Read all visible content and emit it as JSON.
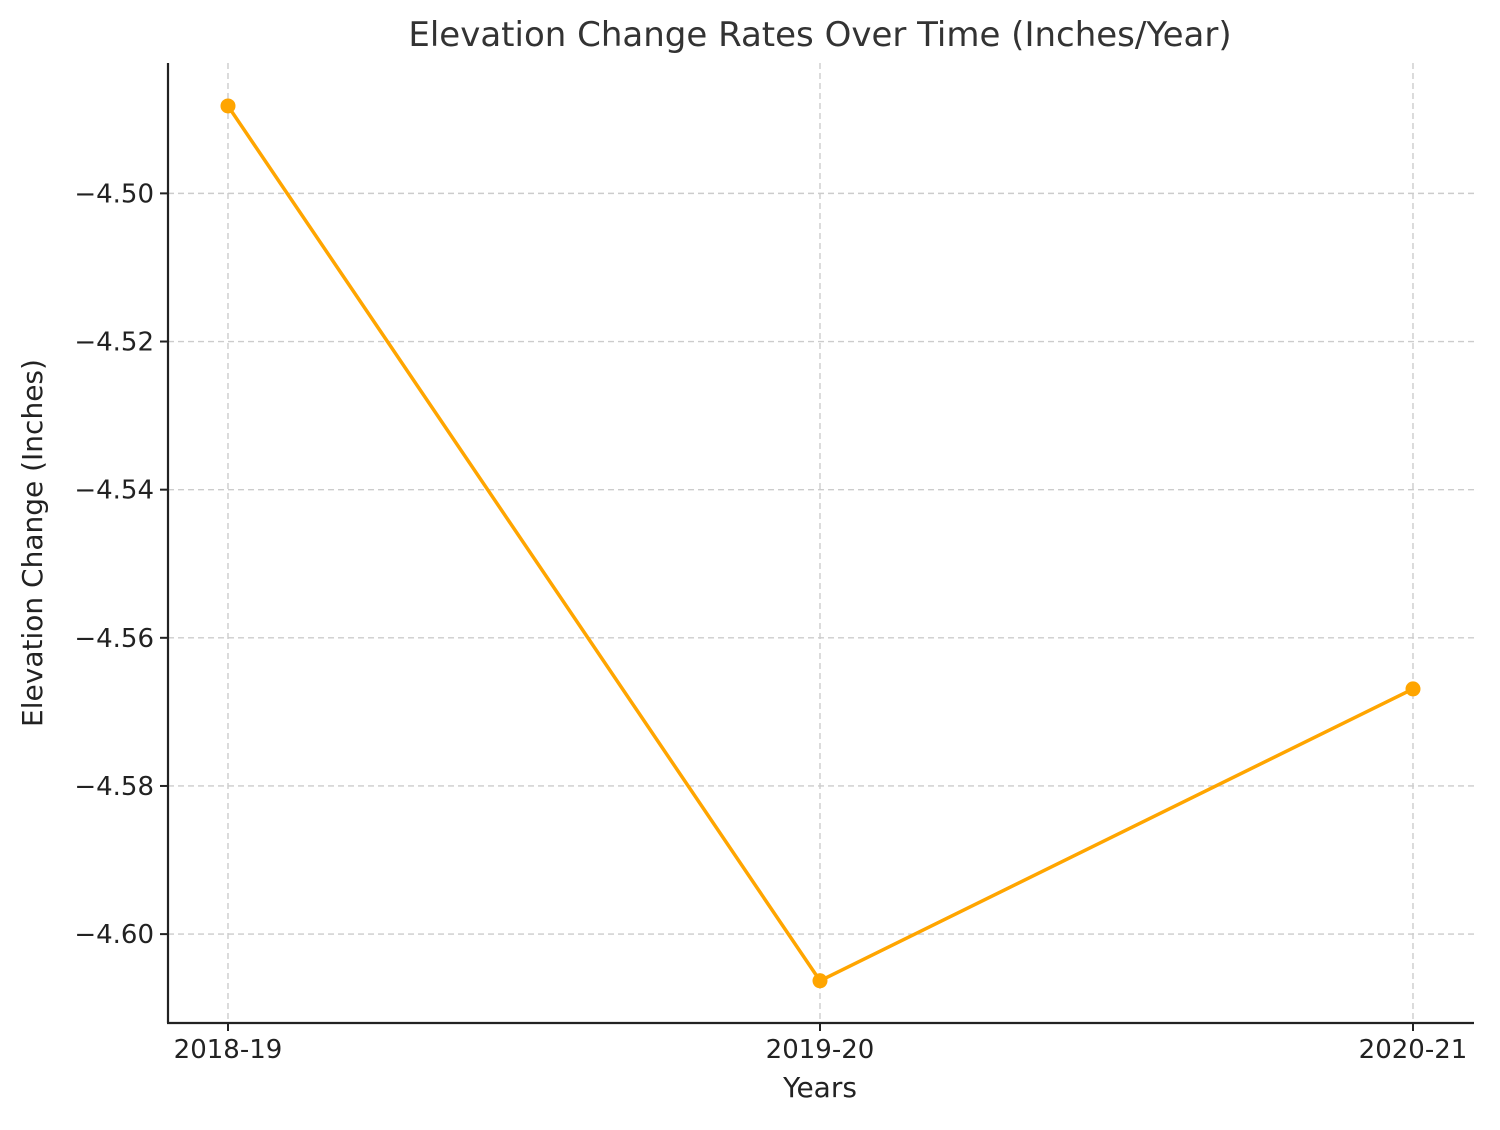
{
  "chart_data": {
    "type": "line",
    "title": "Elevation Change Rates Over Time (Inches/Year)",
    "xlabel": "Years",
    "ylabel": "Elevation Change (Inches)",
    "categories": [
      "2018-19",
      "2019-20",
      "2020-21"
    ],
    "series": [
      {
        "values": [
          -4.4882,
          -4.6063,
          -4.5669
        ],
        "color": "#FFA500",
        "marker": "circle"
      }
    ],
    "y_ticks": [
      -4.5,
      -4.52,
      -4.54,
      -4.56,
      -4.58,
      -4.6
    ],
    "y_tick_labels": [
      "−4.50",
      "−4.52",
      "−4.54",
      "−4.56",
      "−4.58",
      "−4.60"
    ],
    "ylim": [
      -4.612,
      -4.4824
    ],
    "grid": true,
    "legend": "none"
  }
}
